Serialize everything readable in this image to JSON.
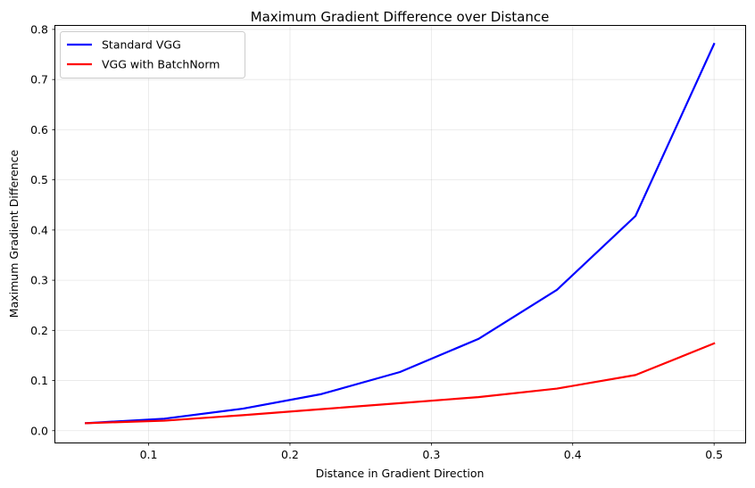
{
  "chart_data": {
    "type": "line",
    "title": "Maximum Gradient Difference over Distance",
    "xlabel": "Distance in Gradient Direction",
    "ylabel": "Maximum Gradient Difference",
    "xlim": [
      0.034,
      0.522
    ],
    "ylim": [
      -0.0235,
      0.807
    ],
    "xticks": [
      0.1,
      0.2,
      0.3,
      0.4,
      0.5
    ],
    "xtick_labels": [
      "0.1",
      "0.2",
      "0.3",
      "0.4",
      "0.5"
    ],
    "yticks": [
      0.0,
      0.1,
      0.2,
      0.3,
      0.4,
      0.5,
      0.6,
      0.7,
      0.8
    ],
    "ytick_labels": [
      "0.0",
      "0.1",
      "0.2",
      "0.3",
      "0.4",
      "0.5",
      "0.6",
      "0.7",
      "0.8"
    ],
    "grid": true,
    "legend_position": "top-left",
    "x": [
      0.0556,
      0.1111,
      0.1667,
      0.2222,
      0.2778,
      0.3333,
      0.3889,
      0.4444,
      0.5
    ],
    "series": [
      {
        "name": "Standard VGG",
        "color": "#0000ff",
        "values": [
          0.015,
          0.024,
          0.044,
          0.073,
          0.117,
          0.183,
          0.281,
          0.428,
          0.771
        ]
      },
      {
        "name": "VGG with BatchNorm",
        "color": "#ff0000",
        "values": [
          0.015,
          0.02,
          0.031,
          0.043,
          0.055,
          0.067,
          0.084,
          0.111,
          0.174
        ]
      }
    ]
  }
}
